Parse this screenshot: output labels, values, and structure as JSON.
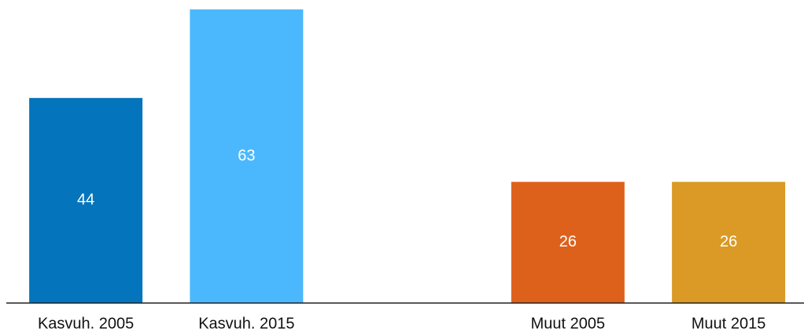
{
  "chart_data": {
    "type": "bar",
    "categories": [
      "Kasvuh. 2005",
      "Kasvuh. 2015",
      null,
      "Muut 2005",
      "Muut 2015"
    ],
    "values": [
      44,
      63,
      null,
      26,
      26
    ],
    "colors": [
      "#0474bc",
      "#4bb8fe",
      null,
      "#de611b",
      "#da9a25"
    ],
    "ylim": [
      0,
      63
    ],
    "grid": false
  }
}
